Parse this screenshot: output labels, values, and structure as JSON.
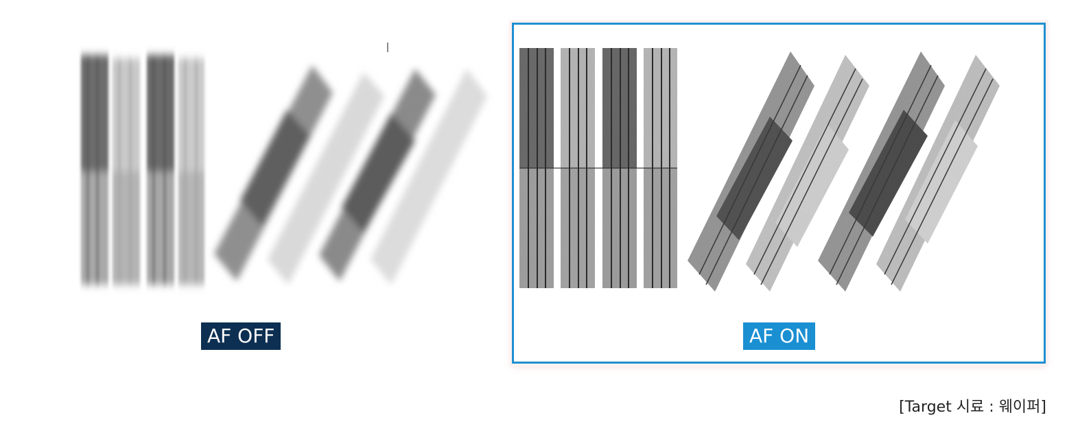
{
  "labels": {
    "off": "AF OFF",
    "on": "AF ON"
  },
  "caption": "[Target 시료 : 웨이퍼]",
  "colors": {
    "off_tag_bg": "#0d2f52",
    "on_tag_bg": "#1a8fd2",
    "on_frame": "#1f8fd0"
  }
}
